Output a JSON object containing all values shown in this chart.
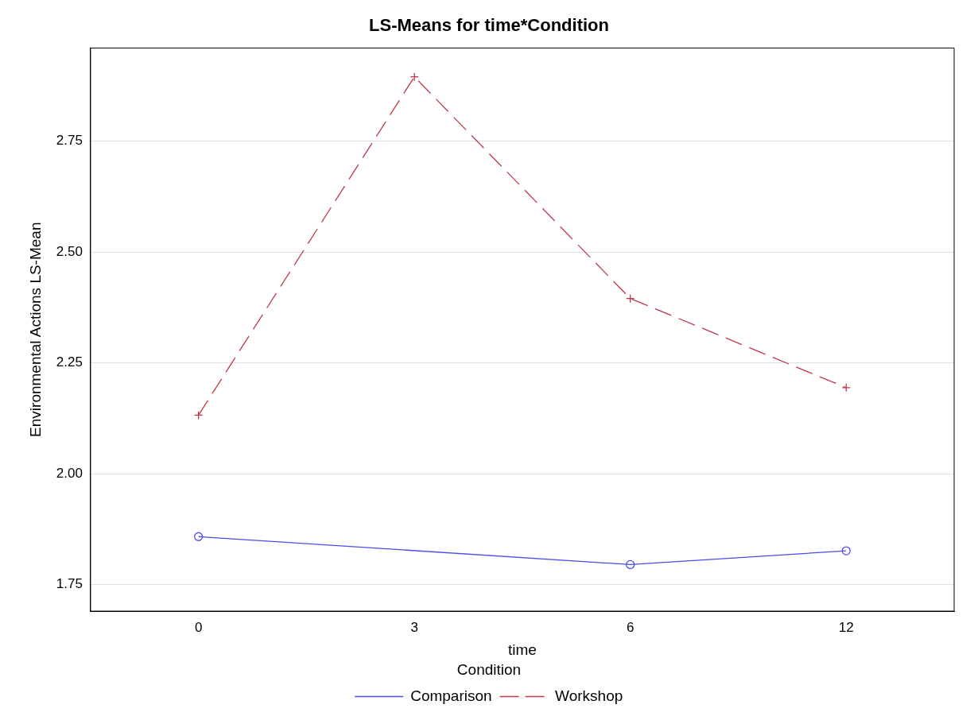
{
  "chart_data": {
    "type": "line",
    "title": "LS-Means for time*Condition",
    "xlabel": "time",
    "ylabel": "Environmental Actions LS-Mean",
    "legend_title": "Condition",
    "categories": [
      "0",
      "3",
      "6",
      "12"
    ],
    "series": [
      {
        "name": "Comparison",
        "color": "#4b4bf0",
        "values": [
          1.858,
          null,
          1.795,
          1.826
        ],
        "marker": "circle",
        "line_style": "solid"
      },
      {
        "name": "Workshop",
        "color": "#c0384a",
        "values": [
          2.132,
          2.895,
          2.395,
          2.194
        ],
        "marker": "cross",
        "line_style": "dashed"
      }
    ],
    "ylim": [
      1.69,
      2.96
    ],
    "yticks": [
      {
        "value": 1.75,
        "label": "1.75"
      },
      {
        "value": 2.0,
        "label": "2.00"
      },
      {
        "value": 2.25,
        "label": "2.25"
      },
      {
        "value": 2.5,
        "label": "2.50"
      },
      {
        "value": 2.75,
        "label": "2.75"
      }
    ],
    "grid": "y",
    "legend": "bottom"
  }
}
